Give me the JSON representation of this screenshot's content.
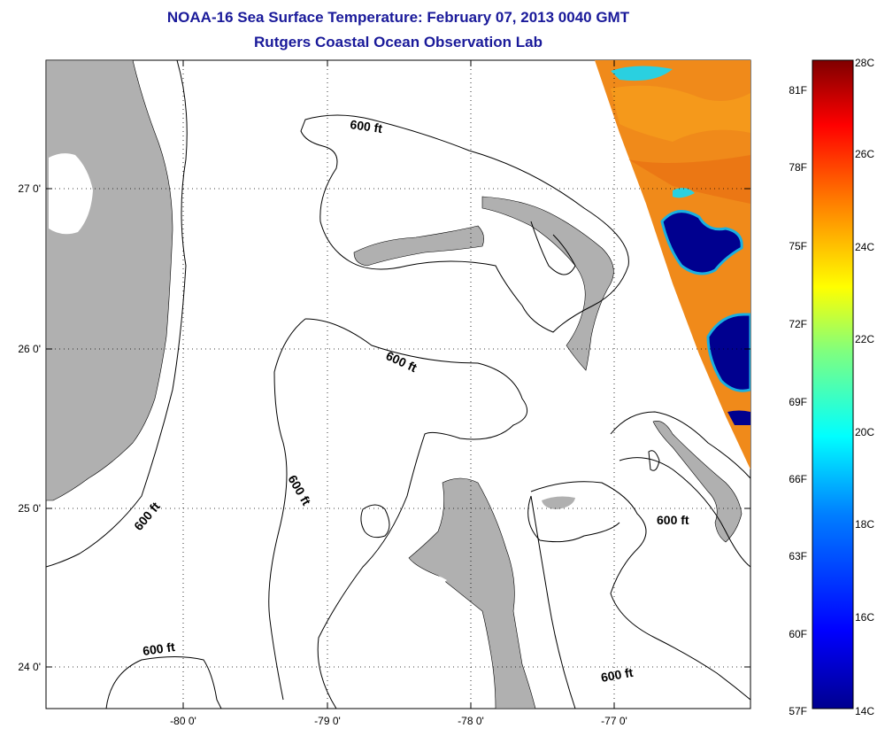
{
  "title": {
    "line1": "NOAA-16 Sea Surface Temperature:  February 07, 2013 0040 GMT",
    "line2": "Rutgers Coastal Ocean Observation Lab"
  },
  "axes": {
    "x_ticks": [
      "-80 0'",
      "-79 0'",
      "-78 0'",
      "-77 0'"
    ],
    "y_ticks": [
      "27 0'",
      "26 0'",
      "25 0'",
      "24 0'"
    ]
  },
  "contour_labels": [
    "600 ft",
    "600 ft",
    "600 ft",
    "600 ft",
    "600 ft",
    "600 ft"
  ],
  "colorbar": {
    "fahrenheit": [
      "81F",
      "78F",
      "75F",
      "72F",
      "69F",
      "66F",
      "63F",
      "60F",
      "57F"
    ],
    "celsius": [
      "28C",
      "26C",
      "24C",
      "22C",
      "20C",
      "18C",
      "16C",
      "14C"
    ],
    "range_c": [
      14,
      28
    ],
    "colors": [
      "#00008f",
      "#0000ff",
      "#007fff",
      "#00ffff",
      "#7fff7f",
      "#ffff00",
      "#ff7f00",
      "#ff0000",
      "#7f0000"
    ]
  },
  "map": {
    "land_color": "#b0b0b0",
    "warm_water_color": "#f08a1a",
    "cold_water_color": "#00008f"
  }
}
